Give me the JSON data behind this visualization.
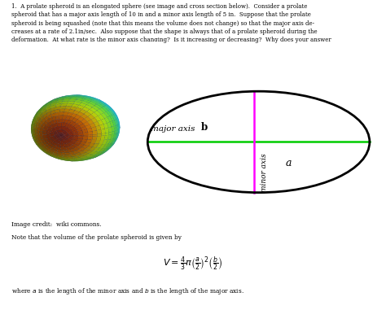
{
  "title_text": "1.  A prolate spheroid is an elongated sphere (see image and cross section below).  Consider a prolate\nspheroid that has a major axis length of 10 in and a minor axis length of 5 in.  Suppose that the prolate\nspheroid is being squashed (note that this means the volume does not change) so that the major axis de-\ncreases at a rate of 2.1in/sec.  Also suppose that the shape is always that of a prolate spheroid during the\ndeformation.  At what rate is the minor axis changing?  Is it increasing or decreasing?  Why does your answer\nmake physical sense?",
  "image_credit": "Image credit:  wiki commons.",
  "note_text": "Note that the volume of the prolate spheroid is given by",
  "formula": "$V = \\frac{4}{3}\\pi\\left(\\frac{a}{2}\\right)^2\\left(\\frac{b}{2}\\right)$",
  "where_text": "where $a$ is the length of the minor axis and $b$ is the length of the major axis.",
  "ellipse_color": "black",
  "green_line_color": "#00cc00",
  "magenta_line_color": "#ff00ff",
  "bg_color": "white",
  "label_b_prefix": "major axis ",
  "label_b_bold": "b",
  "label_a": "a",
  "label_minor": "minor axis",
  "spheroid_a": 0.42,
  "spheroid_b": 0.75
}
